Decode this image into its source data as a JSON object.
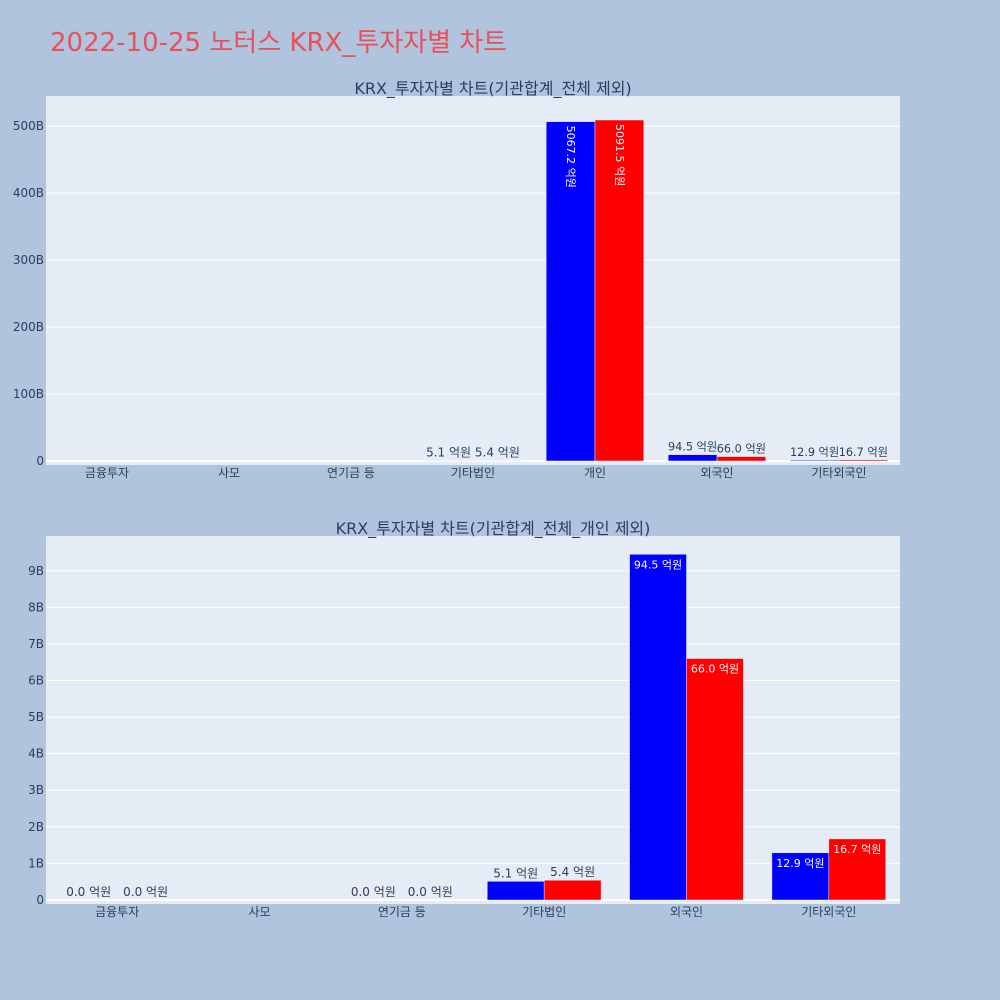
{
  "title": "2022-10-25 노터스 KRX_투자자별 차트",
  "colors": {
    "background": "#b0c4de",
    "plot_background": "#e5ecf6",
    "title": "#e8505b",
    "text": "#2a3f5f",
    "buy": "#0000ff",
    "sell": "#ff0000"
  },
  "chart_data": [
    {
      "type": "bar",
      "title": "KRX_투자자별 차트(기관합계_전체 제외)",
      "categories": [
        "금융투자",
        "사모",
        "연기금 등",
        "기타법인",
        "개인",
        "외국인",
        "기타외국인"
      ],
      "series": [
        {
          "values": [
            0,
            0,
            0,
            510000000,
            506720000000,
            9450000000,
            1290000000
          ],
          "labels": [
            "",
            "",
            "",
            "5.1 억원",
            "5067.2 억원",
            "94.5 억원",
            "12.9 억원"
          ]
        },
        {
          "values": [
            0,
            0,
            0,
            540000000,
            509150000000,
            6600000000,
            1670000000
          ],
          "labels": [
            "",
            "",
            "",
            "5.4 억원",
            "5091.5 억원",
            "66.0 억원",
            "16.7 억원"
          ]
        }
      ],
      "ylim": [
        0,
        545000000000
      ],
      "yticks": [
        0,
        100000000000,
        200000000000,
        300000000000,
        400000000000,
        500000000000
      ],
      "ytick_labels": [
        "0",
        "100B",
        "200B",
        "300B",
        "400B",
        "500B"
      ],
      "grid": true,
      "legend": "none"
    },
    {
      "type": "bar",
      "title": "KRX_투자자별 차트(기관합계_전체_개인 제외)",
      "categories": [
        "금융투자",
        "사모",
        "연기금 등",
        "기타법인",
        "외국인",
        "기타외국인"
      ],
      "series": [
        {
          "values": [
            0,
            0,
            0,
            510000000,
            9450000000,
            1290000000
          ],
          "labels": [
            "0.0 억원",
            "",
            "0.0 억원",
            "5.1 억원",
            "94.5 억원",
            "12.9 억원"
          ]
        },
        {
          "values": [
            0,
            0,
            0,
            540000000,
            6600000000,
            1670000000
          ],
          "labels": [
            "0.0 억원",
            "",
            "0.0 억원",
            "5.4 억원",
            "66.0 억원",
            "16.7 억원"
          ]
        }
      ],
      "ylim": [
        0,
        9950000000
      ],
      "yticks": [
        0,
        1000000000,
        2000000000,
        3000000000,
        4000000000,
        5000000000,
        6000000000,
        7000000000,
        8000000000,
        9000000000
      ],
      "ytick_labels": [
        "0",
        "1B",
        "2B",
        "3B",
        "4B",
        "5B",
        "6B",
        "7B",
        "8B",
        "9B"
      ],
      "grid": true,
      "legend": "none"
    }
  ]
}
